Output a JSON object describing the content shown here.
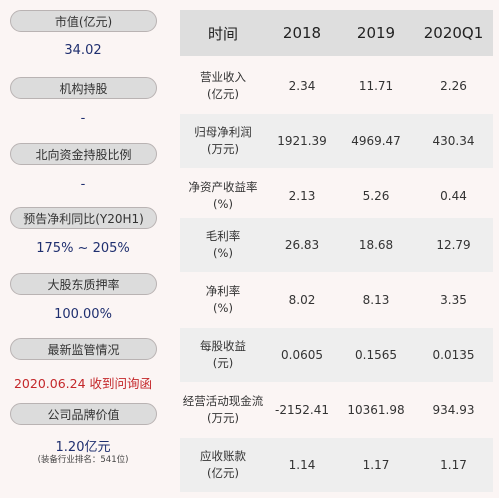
{
  "sidebar": [
    {
      "label": "市值(亿元)",
      "value": "34.02"
    },
    {
      "label": "机构持股",
      "value": "-"
    },
    {
      "label": "北向资金持股比例",
      "value": "-"
    },
    {
      "label": "预告净利同比(Y20H1)",
      "value": "175% ~ 205%"
    },
    {
      "label": "大股东质押率",
      "value": "100.00%"
    },
    {
      "label": "最新监管情况",
      "value": "2020.06.24 收到问询函"
    },
    {
      "label": "公司品牌价值",
      "value": "1.20亿元",
      "note": "(装备行业排名：541位)"
    }
  ],
  "table": {
    "headers": [
      "时间",
      "2018",
      "2019",
      "2020Q1"
    ],
    "rows": [
      {
        "name": "营业收入",
        "unit": "(亿元)",
        "v": [
          "2.34",
          "11.71",
          "2.26"
        ]
      },
      {
        "name": "归母净利润",
        "unit": "(万元)",
        "v": [
          "1921.39",
          "4969.47",
          "430.34"
        ]
      },
      {
        "name": "净资产收益率",
        "unit": "(%)",
        "v": [
          "2.13",
          "5.26",
          "0.44"
        ]
      },
      {
        "name": "毛利率",
        "unit": "(%)",
        "v": [
          "26.83",
          "18.68",
          "12.79"
        ]
      },
      {
        "name": "净利率",
        "unit": "(%)",
        "v": [
          "8.02",
          "8.13",
          "3.35"
        ]
      },
      {
        "name": "每股收益",
        "unit": "(元)",
        "v": [
          "0.0605",
          "0.1565",
          "0.0135"
        ]
      },
      {
        "name": "经营活动现金流",
        "unit": "(万元)",
        "v": [
          "-2152.41",
          "10361.98",
          "934.93"
        ]
      },
      {
        "name": "应收账款",
        "unit": "(亿元)",
        "v": [
          "1.14",
          "1.17",
          "1.17"
        ]
      }
    ]
  }
}
